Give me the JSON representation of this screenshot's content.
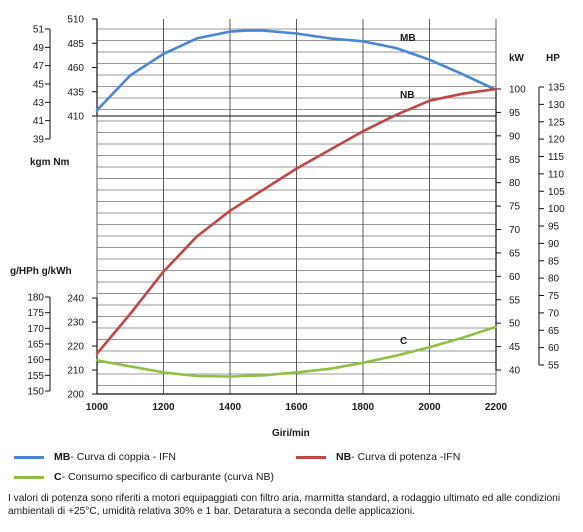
{
  "chart_data": {
    "type": "line",
    "xlabel": "Giri/min",
    "xlim": [
      1000,
      2200
    ],
    "xticks": [
      1000,
      1200,
      1400,
      1600,
      1800,
      2000,
      2200
    ],
    "axes": {
      "torque_nm": {
        "label": "Nm",
        "range": [
          410,
          510
        ],
        "ticks": [
          410,
          435,
          460,
          485,
          510
        ]
      },
      "torque_kgm": {
        "label": "kgm",
        "range": [
          39,
          51
        ],
        "ticks": [
          39,
          41,
          43,
          45,
          47,
          49,
          51
        ]
      },
      "power_kw": {
        "label": "kW",
        "range": [
          40,
          100
        ],
        "ticks": [
          40,
          45,
          50,
          55,
          60,
          65,
          70,
          75,
          80,
          85,
          90,
          95,
          100
        ]
      },
      "power_hp": {
        "label": "HP",
        "range": [
          55,
          135
        ],
        "ticks": [
          55,
          60,
          65,
          70,
          75,
          80,
          85,
          90,
          95,
          100,
          105,
          110,
          115,
          120,
          125,
          130,
          135
        ]
      },
      "consumption_gkwh": {
        "label": "g/kWh",
        "range": [
          200,
          240
        ],
        "ticks": [
          200,
          210,
          220,
          230,
          240
        ]
      },
      "consumption_ghph": {
        "label": "g/HPh",
        "range": [
          150,
          180
        ],
        "ticks": [
          150,
          155,
          160,
          165,
          170,
          175,
          180
        ]
      }
    },
    "series": [
      {
        "name": "MB",
        "axis": "torque_nm",
        "color": "#4a86d4",
        "x": [
          1000,
          1100,
          1200,
          1300,
          1400,
          1450,
          1500,
          1600,
          1700,
          1800,
          1900,
          2000,
          2100,
          2200
        ],
        "values": [
          416,
          452,
          474,
          490,
          497,
          498,
          498,
          495,
          490,
          487,
          480,
          468,
          453,
          437
        ]
      },
      {
        "name": "NB",
        "axis": "power_kw",
        "color": "#c24646",
        "x": [
          1000,
          1100,
          1200,
          1300,
          1400,
          1500,
          1600,
          1700,
          1800,
          1900,
          2000,
          2100,
          2200
        ],
        "values": [
          43.5,
          52,
          61,
          68.5,
          74,
          78.5,
          83,
          87,
          91,
          94.5,
          97.5,
          99,
          100
        ]
      },
      {
        "name": "C",
        "axis": "consumption_gkwh",
        "color": "#8fc043",
        "x": [
          1000,
          1100,
          1200,
          1300,
          1400,
          1500,
          1600,
          1700,
          1800,
          1900,
          2000,
          2100,
          2200
        ],
        "values": [
          214,
          211.5,
          209,
          207.5,
          207.3,
          207.8,
          209,
          210.5,
          213,
          216,
          219.5,
          223.5,
          228
        ]
      }
    ]
  },
  "labels": {
    "torque_units": "kgm   Nm",
    "power_kw_unit": "kW",
    "power_hp_unit": "HP",
    "consumption_units": "g/HPh g/kWh",
    "curve_mb": "MB",
    "curve_nb": "NB",
    "curve_c": "C"
  },
  "legend": [
    {
      "key": "MB",
      "text": " - Curva di coppia - IFN",
      "color": "#4a86d4"
    },
    {
      "key": "NB",
      "text": " - Curva di potenza  -IFN",
      "color": "#c24646"
    },
    {
      "key": "C",
      "text": "  - Consumo specifico di carburante (curva NB)",
      "color": "#8fc043"
    }
  ],
  "note": "I valori di potenza sono riferiti a motori equipaggiati con filtro aria, marmitta standard, a rodaggio ultimato ed alle condizioni ambientali di +25°C, umidità relativa 30% e 1 bar. Detaratura a seconda delle applicazioni."
}
